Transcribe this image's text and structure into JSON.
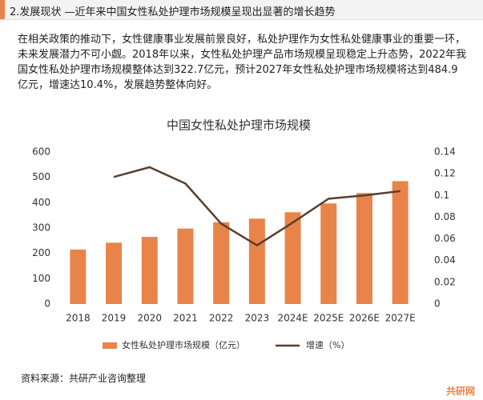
{
  "header": {
    "title": "2.发展现状 —近年来中国女性私处护理市场规模呈现出显著的增长趋势"
  },
  "paragraph": "在相关政策的推动下，女性健康事业发展前景良好，私处护理作为女性私处健康事业的重要一环，未来发展潜力不可小觑。2018年以来，女性私处护理产品市场规模呈现稳定上升态势，2022年我国女性私处护理市场规模整体达到322.7亿元，预计2027年女性私处护理市场规模将达到484.9亿元，增速达10.4%，发展趋势整体向好。",
  "source": "资料来源：共研产业咨询整理",
  "logo": "共研网",
  "chart_data": {
    "type": "bar-line",
    "title": "中国女性私处护理市场规模",
    "categories": [
      "2018",
      "2019",
      "2020",
      "2021",
      "2022",
      "2023",
      "2024E",
      "2025E",
      "2026E",
      "2027E"
    ],
    "series": [
      {
        "name": "女性私处护理市场规模（亿元）",
        "type": "bar",
        "color": "#e8844a",
        "values": [
          215,
          242,
          265,
          298,
          322.7,
          337,
          362,
          397,
          438,
          484.9
        ]
      },
      {
        "name": "增速（%）",
        "type": "line",
        "axis": "y2",
        "color": "#5a3f2e",
        "values": [
          null,
          0.117,
          0.126,
          0.111,
          0.074,
          0.054,
          0.075,
          0.097,
          0.1,
          0.104
        ]
      }
    ],
    "ylim": [
      0,
      600
    ],
    "yticks": [
      0,
      100,
      200,
      300,
      400,
      500,
      600
    ],
    "y2lim": [
      0,
      0.14
    ],
    "y2ticks": [
      0,
      0.02,
      0.04,
      0.06,
      0.08,
      0.1,
      0.12,
      0.14
    ],
    "legend": "bottom"
  }
}
